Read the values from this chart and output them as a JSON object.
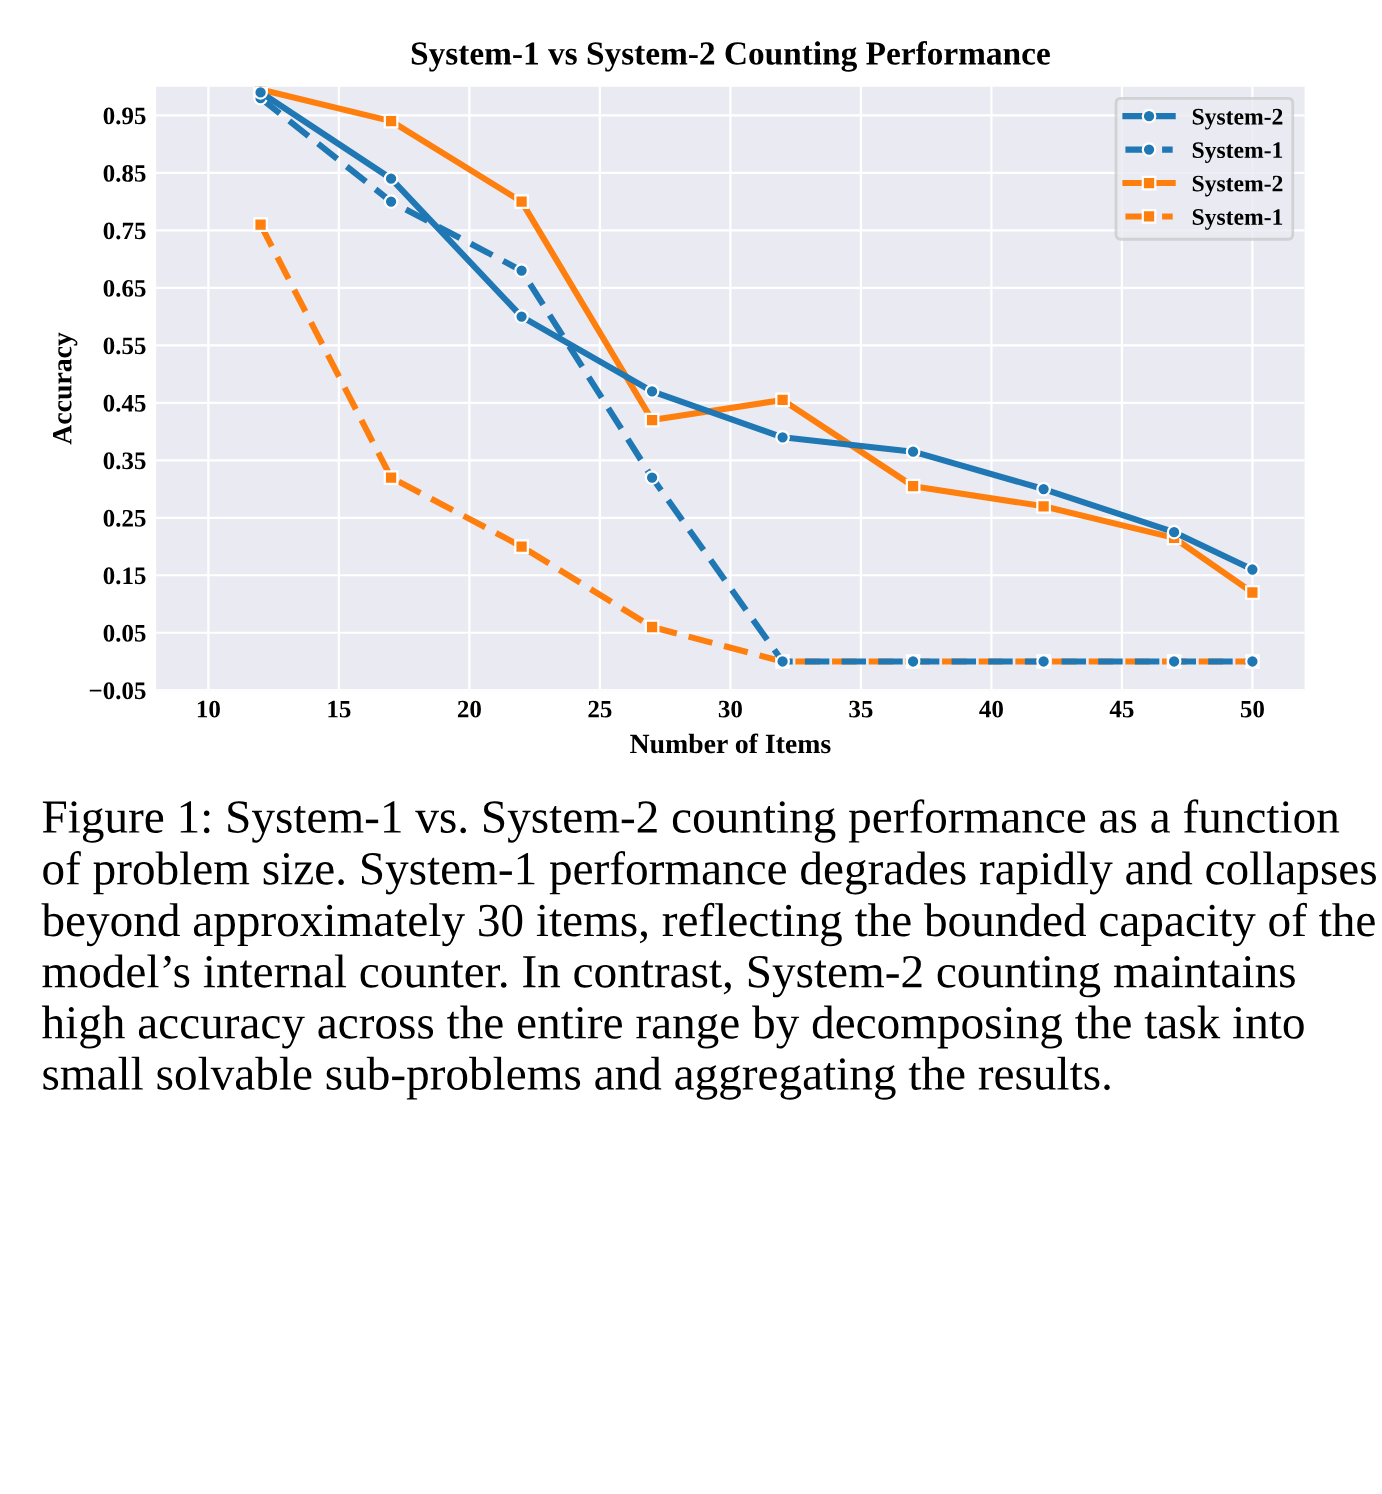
{
  "chart_data": {
    "type": "line",
    "title": "System-1 vs System-2 Counting Performance",
    "xlabel": "Number of Items",
    "ylabel": "Accuracy",
    "x": [
      12,
      17,
      22,
      27,
      32,
      37,
      42,
      47,
      50
    ],
    "series": [
      {
        "name": "System-2",
        "color": "#1f77b4",
        "marker": "circle",
        "line_style": "solid",
        "values": [
          0.99,
          0.84,
          0.6,
          0.47,
          0.39,
          0.365,
          0.3,
          0.225,
          0.16
        ]
      },
      {
        "name": "System-1",
        "color": "#1f77b4",
        "marker": "circle",
        "line_style": "dashed",
        "values": [
          0.98,
          0.8,
          0.68,
          0.32,
          0.0,
          0.0,
          0.0,
          0.0,
          0.0
        ]
      },
      {
        "name": "System-2",
        "color": "#ff7f0e",
        "marker": "square",
        "line_style": "solid",
        "values": [
          0.995,
          0.94,
          0.8,
          0.42,
          0.455,
          0.305,
          0.27,
          0.215,
          0.12
        ]
      },
      {
        "name": "System-1",
        "color": "#ff7f0e",
        "marker": "square",
        "line_style": "dashed",
        "values": [
          0.76,
          0.32,
          0.2,
          0.06,
          0.0,
          0.0,
          0.0,
          0.0,
          0.0
        ]
      }
    ],
    "xlim": [
      8,
      52
    ],
    "xticks": [
      10,
      15,
      20,
      25,
      30,
      35,
      40,
      45,
      50
    ],
    "ylim": [
      -0.05,
      1.0
    ],
    "yticks": [
      {
        "value": -0.05,
        "label": "−0.05"
      },
      0.05,
      0.15,
      0.25,
      0.35,
      0.45,
      0.55,
      0.65,
      0.75,
      0.85,
      0.95
    ],
    "grid": true,
    "legend": "top right",
    "annotations": [
      "Figure 1: System-1 vs. System-2 counting performance as a function of problem size. System-1 performance degrades rapidly and collapses beyond approximately 30 items, reflecting the bounded capacity of the model’s internal counter. In contrast, System-2 counting maintains high accuracy across the entire range by decomposing the task into small solvable sub-problems and aggregating the results."
    ]
  }
}
